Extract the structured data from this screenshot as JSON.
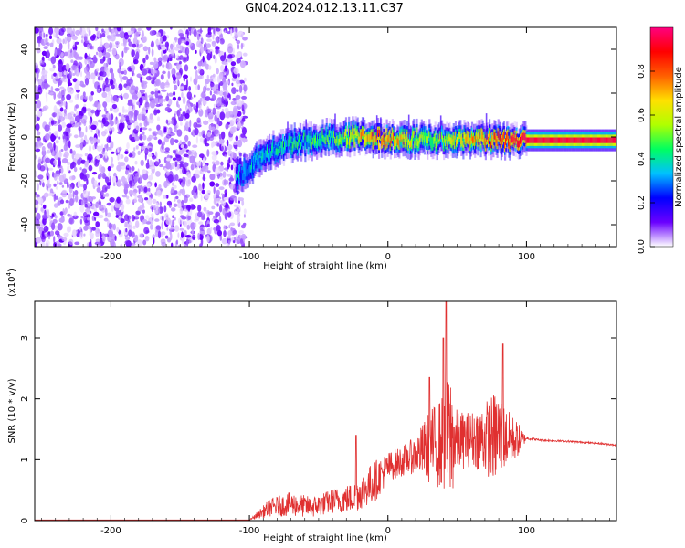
{
  "title": "GN04.2024.012.13.11.C37",
  "chart_data": [
    {
      "type": "heatmap",
      "xlabel": "Height of straight line (km)",
      "ylabel": "Frequency (Hz)",
      "xlim": [
        -255,
        165
      ],
      "ylim": [
        -50,
        50
      ],
      "xticks": [
        -200,
        -100,
        0,
        100
      ],
      "yticks": [
        -40,
        -20,
        0,
        20,
        40
      ],
      "colorbar": {
        "label": "Normalized spectral amplitude",
        "range": [
          0,
          1
        ],
        "ticks": [
          0.0,
          0.2,
          0.4,
          0.6,
          0.8
        ],
        "tick_labels": [
          "0.0",
          "0.2",
          "0.4",
          "0.6",
          "0.8"
        ],
        "colormap": [
          "#ffffff",
          "#6a00ff",
          "#0000ff",
          "#00c0ff",
          "#00ff60",
          "#b0ff00",
          "#ffe000",
          "#ff6000",
          "#ff0000",
          "#ff0080"
        ]
      },
      "features": {
        "noise_region_x": [
          -255,
          -103
        ],
        "signal_band": [
          {
            "x": -110,
            "freq": -18,
            "amp": 0.3
          },
          {
            "x": -90,
            "freq": -8,
            "amp": 0.35
          },
          {
            "x": -70,
            "freq": -3,
            "amp": 0.4
          },
          {
            "x": -40,
            "freq": 0,
            "amp": 0.45
          },
          {
            "x": -20,
            "freq": 0,
            "amp": 0.7
          },
          {
            "x": 0,
            "freq": -1,
            "amp": 0.75
          },
          {
            "x": 30,
            "freq": -1,
            "amp": 0.5
          },
          {
            "x": 60,
            "freq": -1,
            "amp": 0.7
          },
          {
            "x": 100,
            "freq": -1.5,
            "amp": 0.95
          },
          {
            "x": 165,
            "freq": -1.5,
            "amp": 0.95
          }
        ]
      }
    },
    {
      "type": "line",
      "xlabel": "Height of straight line (km)",
      "ylabel": "SNR (10 * v/v)",
      "y_exponent_label": "(x10",
      "y_exponent_sup": "4",
      "y_exponent_close": ")",
      "xlim": [
        -255,
        165
      ],
      "ylim": [
        0,
        3.6
      ],
      "xticks": [
        -200,
        -100,
        0,
        100
      ],
      "yticks": [
        0,
        1,
        2,
        3
      ],
      "color": "#e03030",
      "envelope": {
        "x": [
          -255,
          -100,
          -85,
          -70,
          -55,
          -40,
          -25,
          -10,
          0,
          10,
          20,
          30,
          40,
          45,
          50,
          60,
          70,
          80,
          85,
          90,
          95,
          100,
          110,
          130,
          150,
          165
        ],
        "baseline": [
          0.01,
          0.01,
          0.2,
          0.25,
          0.2,
          0.3,
          0.35,
          0.6,
          0.85,
          0.95,
          1.05,
          1.15,
          1.2,
          1.25,
          1.25,
          1.3,
          1.3,
          1.3,
          1.3,
          1.3,
          1.3,
          1.35,
          1.32,
          1.3,
          1.27,
          1.24
        ],
        "spread": [
          0,
          0,
          0.3,
          0.4,
          0.35,
          0.4,
          0.5,
          0.7,
          0.5,
          0.5,
          0.6,
          1.2,
          1.6,
          2.3,
          1.0,
          0.9,
          1.2,
          1.6,
          1.0,
          0.8,
          0.5,
          0.05,
          0.03,
          0.03,
          0.03,
          0.03
        ]
      },
      "peaks": [
        {
          "x": 42,
          "y": 3.6
        },
        {
          "x": 40,
          "y": 3.0
        },
        {
          "x": 83,
          "y": 2.9
        },
        {
          "x": 30,
          "y": 2.35
        },
        {
          "x": -23,
          "y": 1.4
        }
      ]
    }
  ]
}
